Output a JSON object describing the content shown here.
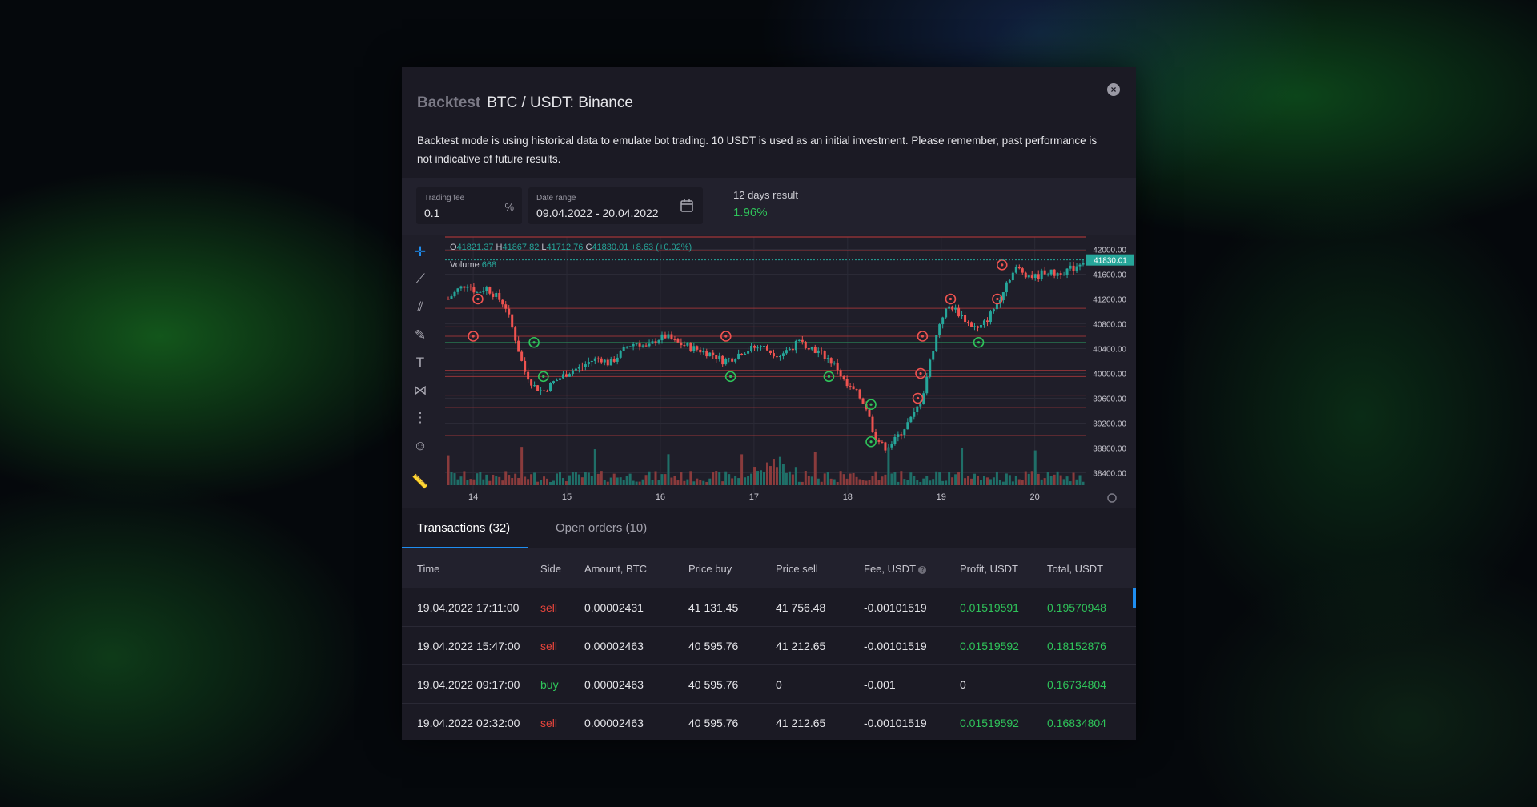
{
  "modal": {
    "title_muted": "Backtest",
    "title_main": "BTC / USDT: Binance",
    "description": "Backtest mode is using historical data to emulate bot trading. 10 USDT is used as an initial investment. Please remember, past performance is not indicative of future results."
  },
  "controls": {
    "trading_fee": {
      "label": "Trading fee",
      "value": "0.1",
      "unit": "%"
    },
    "date_range": {
      "label": "Date range",
      "value": "09.04.2022 - 20.04.2022"
    },
    "result": {
      "label": "12 days result",
      "value": "1.96%"
    }
  },
  "chart_data": {
    "type": "candlestick",
    "ohlc_legend": {
      "o_label": "O",
      "o": "41821.37",
      "h_label": "H",
      "h": "41867.82",
      "l_label": "L",
      "l": "41712.76",
      "c_label": "C",
      "c": "41830.01",
      "change": "+8.63 (+0.02%)"
    },
    "volume_label": "Volume",
    "volume_value": "668",
    "last_price": "41830.01",
    "y_ticks": [
      "42000.00",
      "41600.00",
      "41200.00",
      "40800.00",
      "40400.00",
      "40000.00",
      "39600.00",
      "39200.00",
      "38800.00",
      "38400.00"
    ],
    "x_ticks": [
      "14",
      "15",
      "16",
      "17",
      "18",
      "19",
      "20"
    ],
    "ylim": [
      38200,
      42200
    ],
    "price_path": [
      41200,
      41350,
      41450,
      41300,
      41380,
      41250,
      41100,
      40600,
      40050,
      39800,
      39700,
      39850,
      39950,
      40050,
      40100,
      40200,
      40250,
      40150,
      40300,
      40450,
      40500,
      40400,
      40550,
      40600,
      40500,
      40450,
      40400,
      40350,
      40300,
      40200,
      40250,
      40350,
      40400,
      40450,
      40350,
      40300,
      40400,
      40500,
      40450,
      40350,
      40250,
      40100,
      39800,
      39700,
      39500,
      39000,
      38800,
      38900,
      39100,
      39300,
      39600,
      40300,
      40900,
      41100,
      40950,
      40800,
      40700,
      40900,
      41150,
      41500,
      41700,
      41600,
      41550,
      41650,
      41600,
      41650,
      41700,
      41830
    ],
    "buy_markers": [
      {
        "x": 14.65,
        "y": 40500
      },
      {
        "x": 14.75,
        "y": 39950
      },
      {
        "x": 16.75,
        "y": 39950
      },
      {
        "x": 17.8,
        "y": 39950
      },
      {
        "x": 18.25,
        "y": 39500
      },
      {
        "x": 18.25,
        "y": 38900
      },
      {
        "x": 19.4,
        "y": 40500
      }
    ],
    "sell_markers": [
      {
        "x": 14.05,
        "y": 41200
      },
      {
        "x": 14.0,
        "y": 40600
      },
      {
        "x": 16.7,
        "y": 40600
      },
      {
        "x": 18.8,
        "y": 40600
      },
      {
        "x": 18.78,
        "y": 40000
      },
      {
        "x": 18.75,
        "y": 39600
      },
      {
        "x": 19.1,
        "y": 41200
      },
      {
        "x": 19.65,
        "y": 41750
      },
      {
        "x": 19.6,
        "y": 41200
      }
    ],
    "h_lines_red": [
      41980,
      41200,
      41050,
      40750,
      40600,
      40050,
      39950,
      39650,
      39450,
      39000,
      38800
    ],
    "h_lines_green": [
      40500
    ]
  },
  "tabs": [
    {
      "label": "Transactions (32)"
    },
    {
      "label": "Open orders (10)"
    }
  ],
  "table": {
    "headers": [
      "Time",
      "Side",
      "Amount, BTC",
      "Price buy",
      "Price sell",
      "Fee, USDT",
      "Profit, USDT",
      "Total, USDT"
    ],
    "rows": [
      {
        "time": "19.04.2022 17:11:00",
        "side": "sell",
        "amount": "0.00002431",
        "price_buy": "41 131.45",
        "price_sell": "41 756.48",
        "fee": "-0.00101519",
        "profit": "0.01519591",
        "total": "0.19570948"
      },
      {
        "time": "19.04.2022 15:47:00",
        "side": "sell",
        "amount": "0.00002463",
        "price_buy": "40 595.76",
        "price_sell": "41 212.65",
        "fee": "-0.00101519",
        "profit": "0.01519592",
        "total": "0.18152876"
      },
      {
        "time": "19.04.2022 09:17:00",
        "side": "buy",
        "amount": "0.00002463",
        "price_buy": "40 595.76",
        "price_sell": "0",
        "fee": "-0.001",
        "profit": "0",
        "total": "0.16734804"
      },
      {
        "time": "19.04.2022 02:32:00",
        "side": "sell",
        "amount": "0.00002463",
        "price_buy": "40 595.76",
        "price_sell": "41 212.65",
        "fee": "-0.00101519",
        "profit": "0.01519592",
        "total": "0.16834804"
      }
    ]
  },
  "colors": {
    "up": "#26a69a",
    "down": "#ef5350",
    "accent": "#1f8ef1",
    "positive": "#2fc45a",
    "negative": "#e8453c"
  },
  "icons": [
    "crosshair-icon",
    "trendline-icon",
    "pitchfork-icon",
    "brush-icon",
    "text-icon",
    "pattern-icon",
    "forecast-icon",
    "emoji-icon",
    "ruler-icon",
    "close-icon",
    "calendar-icon",
    "settings-icon",
    "help-icon"
  ]
}
